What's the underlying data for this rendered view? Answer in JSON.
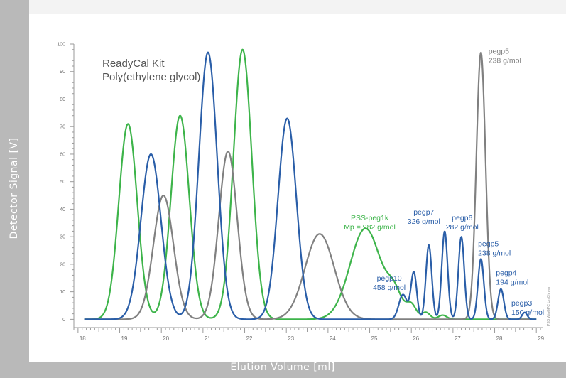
{
  "chart_data": {
    "type": "line",
    "title_lines": [
      "ReadyCal Kit",
      "Poly(ethylene glycol)"
    ],
    "xlabel": "Elution Volume [ml]",
    "ylabel": "Detector Signal [V]",
    "xlim": [
      17.9,
      29.15
    ],
    "ylim": [
      -3,
      100
    ],
    "x_ticks": [
      18,
      19,
      20,
      21,
      22,
      23,
      24,
      25,
      26,
      27,
      28,
      29
    ],
    "y_ticks": [
      0,
      10,
      20,
      30,
      40,
      50,
      60,
      70,
      80,
      90,
      100
    ],
    "watermark": "PSS WinGPC UniChrom",
    "colors": {
      "green": "#3db44a",
      "blue": "#2a5ea8",
      "gray": "#808080"
    },
    "series": [
      {
        "color": "green",
        "baseline": 0,
        "peaks": [
          {
            "x": 19.2,
            "height": 71,
            "sigma": 0.22
          },
          {
            "x": 20.45,
            "height": 74,
            "sigma": 0.22
          },
          {
            "x": 21.95,
            "height": 98,
            "sigma": 0.22
          },
          {
            "x": 24.9,
            "height": 33,
            "sigma": 0.37
          },
          {
            "x": 25.6,
            "height": 8,
            "sigma": 0.18
          },
          {
            "x": 26.0,
            "height": 5,
            "sigma": 0.12
          },
          {
            "x": 26.35,
            "height": 2.5,
            "sigma": 0.1
          },
          {
            "x": 26.75,
            "height": 1.5,
            "sigma": 0.1
          }
        ]
      },
      {
        "color": "gray",
        "baseline": 0,
        "peaks": [
          {
            "x": 20.05,
            "height": 45,
            "sigma": 0.24
          },
          {
            "x": 21.6,
            "height": 61,
            "sigma": 0.22
          },
          {
            "x": 23.8,
            "height": 31,
            "sigma": 0.35
          },
          {
            "x": 27.67,
            "height": 97,
            "sigma": 0.11
          }
        ]
      },
      {
        "color": "blue",
        "baseline": 0,
        "peaks": [
          {
            "x": 19.75,
            "height": 60,
            "sigma": 0.24
          },
          {
            "x": 21.12,
            "height": 97,
            "sigma": 0.22
          },
          {
            "x": 23.02,
            "height": 73,
            "sigma": 0.22
          },
          {
            "x": 25.8,
            "height": 9,
            "sigma": 0.1
          },
          {
            "x": 26.06,
            "height": 17,
            "sigma": 0.07
          },
          {
            "x": 26.42,
            "height": 27,
            "sigma": 0.07
          },
          {
            "x": 26.8,
            "height": 32,
            "sigma": 0.07
          },
          {
            "x": 27.2,
            "height": 30,
            "sigma": 0.07
          },
          {
            "x": 27.67,
            "height": 22,
            "sigma": 0.07
          },
          {
            "x": 28.15,
            "height": 11,
            "sigma": 0.07
          },
          {
            "x": 28.72,
            "height": 2.5,
            "sigma": 0.06
          }
        ]
      }
    ],
    "annotations": [
      {
        "lines": [
          "PSS-peg1k",
          "Mp = 982 g/mol"
        ],
        "color": "green",
        "x": 25.0,
        "y": 36,
        "align": "middle"
      },
      {
        "lines": [
          "pegp10",
          "458 g/mol"
        ],
        "color": "blue",
        "x": 25.47,
        "y": 14,
        "align": "middle"
      },
      {
        "lines": [
          "pegp7",
          "326 g/mol"
        ],
        "color": "blue",
        "x": 26.3,
        "y": 38,
        "align": "middle"
      },
      {
        "lines": [
          "pegp6",
          "282 g/mol"
        ],
        "color": "blue",
        "x": 27.22,
        "y": 36,
        "align": "middle"
      },
      {
        "lines": [
          "pegp5",
          "238 g/mol"
        ],
        "color": "blue",
        "x": 27.6,
        "y": 26.5,
        "align": "start"
      },
      {
        "lines": [
          "pegp4",
          "194 g/mol"
        ],
        "color": "blue",
        "x": 28.03,
        "y": 16,
        "align": "start"
      },
      {
        "lines": [
          "pegp3",
          "150 g/mol"
        ],
        "color": "blue",
        "x": 28.4,
        "y": 5,
        "align": "start"
      },
      {
        "lines": [
          "pegp5",
          "238 g/mol"
        ],
        "color": "gray",
        "x": 27.85,
        "y": 96.5,
        "align": "start"
      }
    ]
  }
}
